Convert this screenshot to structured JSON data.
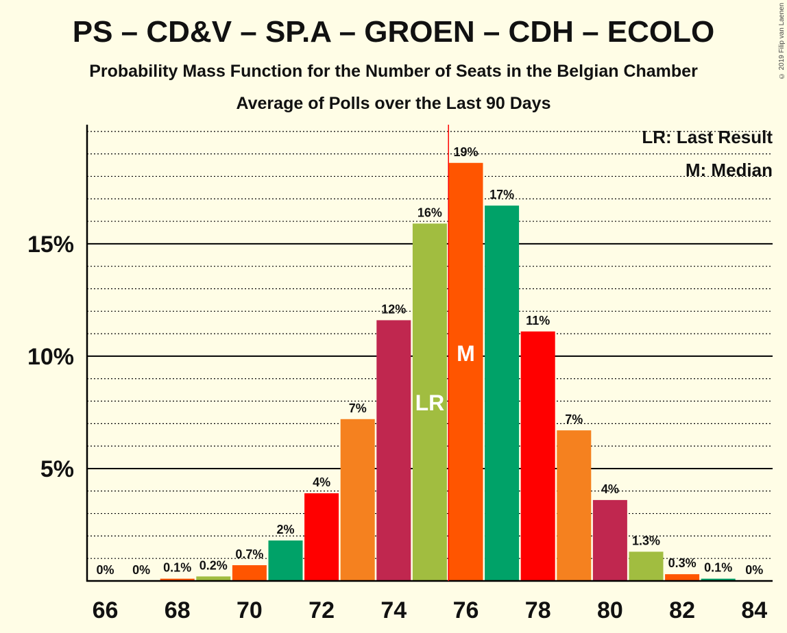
{
  "header": {
    "title": "PS – CD&V – SP.A – GROEN – CDH – ECOLO",
    "subtitle": "Probability Mass Function for the Number of Seats in the Belgian Chamber",
    "subtitle2": "Average of Polls over the Last 90 Days",
    "copyright": "© 2019 Filip van Laenen"
  },
  "legend": {
    "last_result": "LR: Last Result",
    "median": "M: Median"
  },
  "chart_data": {
    "type": "bar",
    "x": [
      66,
      67,
      68,
      69,
      70,
      71,
      72,
      73,
      74,
      75,
      76,
      77,
      78,
      79,
      80,
      81,
      82,
      83,
      84
    ],
    "values": [
      0,
      0,
      0.1,
      0.2,
      0.7,
      1.8,
      3.9,
      7.2,
      11.6,
      15.9,
      18.6,
      16.7,
      11.1,
      6.7,
      3.6,
      1.3,
      0.3,
      0.1,
      0
    ],
    "labels": [
      "0%",
      "0%",
      "0.1%",
      "0.2%",
      "0.7%",
      "2%",
      "4%",
      "7%",
      "12%",
      "16%",
      "19%",
      "17%",
      "11%",
      "7%",
      "4%",
      "1.3%",
      "0.3%",
      "0.1%",
      "0%"
    ],
    "colors": [
      "#A1BD40",
      "#F5811F",
      "#FF5500",
      "#A1BD40",
      "#FF5500",
      "#00A268",
      "#FF0000",
      "#F5811F",
      "#C0274F",
      "#A1BD40",
      "#FF5500",
      "#00A268",
      "#FF0000",
      "#F5811F",
      "#C0274F",
      "#A1BD40",
      "#FF5500",
      "#00A268",
      "#FF0000"
    ],
    "x_tick_labels": [
      "66",
      "68",
      "70",
      "72",
      "74",
      "76",
      "78",
      "80",
      "82",
      "84"
    ],
    "y_tick_labels": [
      "5%",
      "10%",
      "15%"
    ],
    "y_ticks": [
      5,
      10,
      15
    ],
    "ylim": [
      0,
      20.3
    ],
    "last_result": 75,
    "last_result_marker": "LR",
    "median": 76,
    "median_marker": "M",
    "majority_line": 75.5,
    "grid": true,
    "legend_position": "top-right"
  }
}
